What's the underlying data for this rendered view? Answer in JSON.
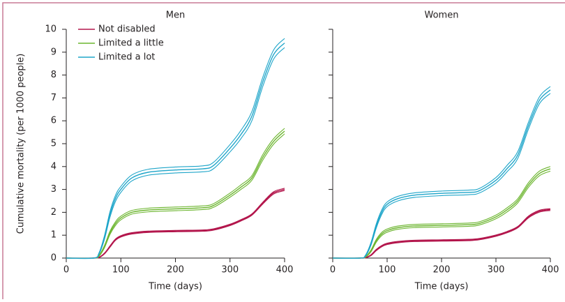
{
  "chart_data": [
    {
      "type": "line",
      "title": "Men",
      "xlabel": "Time (days)",
      "ylabel": "Cumulative mortality (per 1000 people)",
      "x": [
        0,
        50,
        60,
        70,
        80,
        90,
        100,
        120,
        150,
        200,
        250,
        270,
        300,
        320,
        340,
        360,
        380,
        400
      ],
      "xlim": [
        0,
        400
      ],
      "xticks": [
        0,
        100,
        200,
        300,
        400
      ],
      "ylim": [
        0,
        10
      ],
      "yticks": [
        0,
        1,
        2,
        3,
        4,
        5,
        6,
        7,
        8,
        9,
        10
      ],
      "show_ytick_labels": true,
      "legend": "upper left",
      "series": [
        {
          "name": "Not disabled",
          "color": "#b3164c",
          "values": [
            0,
            0,
            0.03,
            0.2,
            0.5,
            0.8,
            0.95,
            1.08,
            1.15,
            1.18,
            1.2,
            1.25,
            1.45,
            1.65,
            1.9,
            2.4,
            2.85,
            3.0
          ],
          "lower": [
            0,
            0,
            0.02,
            0.18,
            0.47,
            0.77,
            0.92,
            1.05,
            1.12,
            1.15,
            1.17,
            1.22,
            1.42,
            1.62,
            1.87,
            2.36,
            2.8,
            2.95
          ],
          "upper": [
            0,
            0,
            0.04,
            0.22,
            0.53,
            0.83,
            0.98,
            1.11,
            1.18,
            1.21,
            1.23,
            1.28,
            1.48,
            1.68,
            1.93,
            2.44,
            2.9,
            3.05
          ]
        },
        {
          "name": "Limited a little",
          "color": "#6cb52f",
          "values": [
            0,
            0,
            0.1,
            0.5,
            1.1,
            1.5,
            1.75,
            2.0,
            2.1,
            2.15,
            2.2,
            2.3,
            2.75,
            3.1,
            3.5,
            4.4,
            5.1,
            5.55
          ],
          "lower": [
            0,
            0,
            0.08,
            0.45,
            1.03,
            1.42,
            1.67,
            1.92,
            2.02,
            2.07,
            2.12,
            2.22,
            2.66,
            3.0,
            3.4,
            4.28,
            4.98,
            5.43
          ],
          "upper": [
            0,
            0,
            0.12,
            0.55,
            1.17,
            1.58,
            1.83,
            2.08,
            2.18,
            2.23,
            2.28,
            2.38,
            2.84,
            3.2,
            3.6,
            4.52,
            5.22,
            5.67
          ]
        },
        {
          "name": "Limited a lot",
          "color": "#1ea5c9",
          "values": [
            0,
            0,
            0.2,
            0.9,
            1.9,
            2.6,
            3.0,
            3.5,
            3.75,
            3.85,
            3.9,
            4.05,
            4.8,
            5.4,
            6.2,
            7.7,
            8.9,
            9.4
          ],
          "lower": [
            0,
            0,
            0.17,
            0.82,
            1.78,
            2.47,
            2.87,
            3.37,
            3.62,
            3.72,
            3.77,
            3.91,
            4.64,
            5.22,
            6.0,
            7.5,
            8.7,
            9.2
          ],
          "upper": [
            0,
            0,
            0.23,
            0.98,
            2.02,
            2.73,
            3.13,
            3.63,
            3.88,
            3.98,
            4.03,
            4.19,
            4.96,
            5.58,
            6.4,
            7.9,
            9.1,
            9.6
          ]
        }
      ]
    },
    {
      "type": "line",
      "title": "Women",
      "xlabel": "Time (days)",
      "x": [
        0,
        50,
        60,
        70,
        80,
        90,
        100,
        120,
        150,
        200,
        250,
        270,
        300,
        320,
        340,
        360,
        380,
        400
      ],
      "xlim": [
        0,
        400
      ],
      "xticks": [
        0,
        100,
        200,
        300,
        400
      ],
      "ylim": [
        0,
        10
      ],
      "yticks": [
        0,
        1,
        2,
        3,
        4,
        5,
        6,
        7,
        8,
        9,
        10
      ],
      "show_ytick_labels": false,
      "series": [
        {
          "color": "#b3164c",
          "values": [
            0,
            0,
            0.02,
            0.12,
            0.35,
            0.52,
            0.62,
            0.7,
            0.75,
            0.77,
            0.79,
            0.83,
            0.98,
            1.13,
            1.35,
            1.8,
            2.05,
            2.12
          ],
          "lower": [
            0,
            0,
            0.01,
            0.1,
            0.32,
            0.49,
            0.59,
            0.67,
            0.72,
            0.74,
            0.76,
            0.8,
            0.95,
            1.1,
            1.32,
            1.76,
            2.01,
            2.08
          ],
          "upper": [
            0,
            0,
            0.03,
            0.14,
            0.38,
            0.55,
            0.65,
            0.73,
            0.78,
            0.8,
            0.82,
            0.86,
            1.01,
            1.16,
            1.38,
            1.84,
            2.09,
            2.16
          ]
        },
        {
          "color": "#6cb52f",
          "values": [
            0,
            0,
            0.05,
            0.3,
            0.75,
            1.05,
            1.2,
            1.33,
            1.4,
            1.43,
            1.46,
            1.52,
            1.8,
            2.1,
            2.5,
            3.2,
            3.7,
            3.9
          ],
          "lower": [
            0,
            0,
            0.04,
            0.26,
            0.69,
            0.98,
            1.13,
            1.26,
            1.33,
            1.36,
            1.39,
            1.45,
            1.72,
            2.01,
            2.41,
            3.1,
            3.6,
            3.8
          ],
          "upper": [
            0,
            0,
            0.06,
            0.34,
            0.81,
            1.12,
            1.27,
            1.4,
            1.47,
            1.5,
            1.53,
            1.59,
            1.88,
            2.19,
            2.59,
            3.3,
            3.8,
            4.0
          ]
        },
        {
          "color": "#1ea5c9",
          "values": [
            0,
            0,
            0.1,
            0.6,
            1.4,
            2.0,
            2.35,
            2.6,
            2.75,
            2.83,
            2.87,
            2.95,
            3.4,
            3.9,
            4.5,
            5.8,
            6.9,
            7.35
          ],
          "lower": [
            0,
            0,
            0.08,
            0.54,
            1.31,
            1.9,
            2.25,
            2.5,
            2.65,
            2.73,
            2.77,
            2.85,
            3.28,
            3.76,
            4.35,
            5.65,
            6.75,
            7.2
          ],
          "upper": [
            0,
            0,
            0.12,
            0.66,
            1.49,
            2.1,
            2.45,
            2.7,
            2.85,
            2.93,
            2.97,
            3.05,
            3.52,
            4.04,
            4.65,
            5.95,
            7.05,
            7.5
          ]
        }
      ]
    }
  ]
}
